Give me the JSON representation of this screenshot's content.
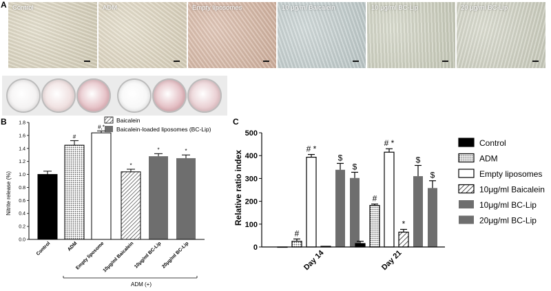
{
  "panels": {
    "a": "A",
    "b": "B",
    "c": "C"
  },
  "micrographs": [
    {
      "label": "Control",
      "tint": "#ddd6bf"
    },
    {
      "label": "ADM",
      "tint": "#e1d8c1"
    },
    {
      "label": "Empty liposomes",
      "tint": "#d9b7a3"
    },
    {
      "label": "10 μg/ml Baicalein",
      "tint": "#c4d0d0"
    },
    {
      "label": "10 μg/ml BC-Lip",
      "tint": "#cfd2c0"
    },
    {
      "label": "20 μg/ml BC-Lip",
      "tint": "#d2d4c4"
    }
  ],
  "dishes": [
    {
      "color": "#f3f1f1"
    },
    {
      "color": "#eedddd"
    },
    {
      "color": "#e2b9bf"
    },
    {
      "color": "#f6f6f6"
    },
    {
      "color": "#e0b6bc"
    },
    {
      "color": "#e6c8cc"
    }
  ],
  "chart_data": [
    {
      "type": "bar",
      "ylabel": "Nitrite release (%)",
      "ylim": [
        0,
        1.8
      ],
      "yticks": [
        "0.0",
        "0.2",
        "0.4",
        "0.6",
        "0.8",
        "1.0",
        "1.2",
        "1.4",
        "1.6",
        "1.8"
      ],
      "categories": [
        "Control",
        "ADM",
        "Empty liposome",
        "10μg/ml Baicalein",
        "10μg/ml BC-Lip",
        "20μg/ml BC-Lip"
      ],
      "values": [
        1.0,
        1.45,
        1.64,
        1.04,
        1.28,
        1.25
      ],
      "errors": [
        0.05,
        0.07,
        0.03,
        0.04,
        0.04,
        0.05
      ],
      "annotations": [
        "",
        "#",
        "#,*",
        "*",
        "*",
        "*"
      ],
      "legend": [
        "Baicalein",
        "Baicalein-loaded liposomes (BC-Lip)"
      ],
      "group_label": "ADM (+)",
      "fills": [
        "black",
        "dots",
        "white",
        "hatch",
        "gray",
        "gray"
      ],
      "colors": {
        "gray": "#6e6e6e"
      }
    },
    {
      "type": "bar",
      "ylabel": "Relative ratio index",
      "ylim": [
        0,
        500
      ],
      "yticks": [
        "0",
        "100",
        "200",
        "300",
        "400",
        "500"
      ],
      "categories": [
        "Day 14",
        "Day 21"
      ],
      "series": [
        {
          "name": "Control",
          "fill": "black",
          "values": [
            0,
            15
          ],
          "errors": [
            0,
            10
          ]
        },
        {
          "name": "ADM",
          "fill": "dots",
          "values": [
            25,
            182
          ],
          "errors": [
            10,
            6
          ]
        },
        {
          "name": "Empty liposomes",
          "fill": "white",
          "values": [
            393,
            415
          ],
          "errors": [
            12,
            15
          ]
        },
        {
          "name": "10μg/ml Baicalein",
          "fill": "hatch",
          "values": [
            3,
            65
          ],
          "errors": [
            0,
            12
          ]
        },
        {
          "name": "10μg/ml BC-Lip",
          "fill": "gray",
          "values": [
            338,
            310
          ],
          "errors": [
            28,
            47
          ]
        },
        {
          "name": "20μg/ml BC-Lip",
          "fill": "gray",
          "values": [
            302,
            258
          ],
          "errors": [
            25,
            32
          ]
        }
      ],
      "annotations": [
        [
          "",
          "#",
          "# *",
          "",
          "$",
          "$"
        ],
        [
          "",
          "#",
          "# *",
          "*",
          "$",
          "$"
        ]
      ]
    }
  ]
}
